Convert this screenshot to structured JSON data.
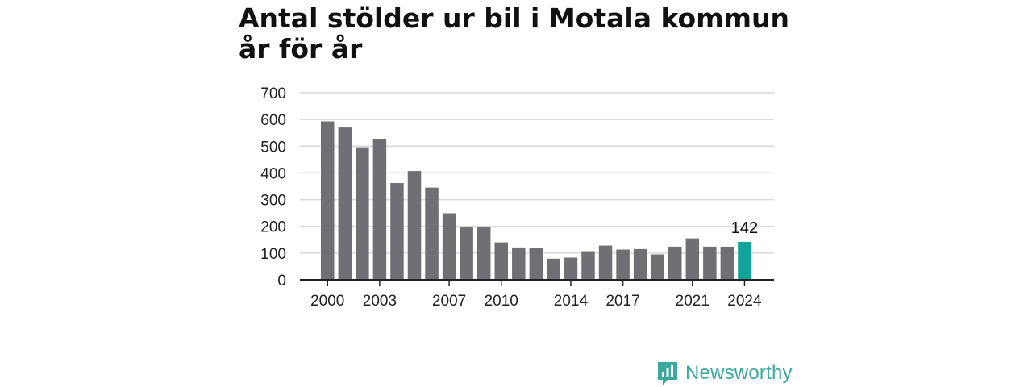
{
  "chart_data": {
    "type": "bar",
    "title": "Antal stölder ur bil i Motala kommun år för år",
    "x": [
      2000,
      2001,
      2002,
      2003,
      2004,
      2005,
      2006,
      2007,
      2008,
      2009,
      2010,
      2011,
      2012,
      2013,
      2014,
      2015,
      2016,
      2017,
      2018,
      2019,
      2020,
      2021,
      2022,
      2023,
      2024
    ],
    "values": [
      593,
      570,
      496,
      527,
      362,
      407,
      345,
      249,
      196,
      196,
      140,
      121,
      120,
      79,
      83,
      107,
      128,
      113,
      115,
      95,
      124,
      155,
      124,
      124,
      142
    ],
    "ylim": [
      0,
      700
    ],
    "yticks": [
      0,
      100,
      200,
      300,
      400,
      500,
      600,
      700
    ],
    "xtick_labels": [
      "2000",
      "2003",
      "2007",
      "2010",
      "2014",
      "2017",
      "2021",
      "2024"
    ],
    "highlight": {
      "index": 24,
      "label": "142"
    },
    "grid": true,
    "colors": {
      "bar": "#6f6f74",
      "highlight": "#0fa39a",
      "grid": "#d9d9d9",
      "axis": "#222222"
    }
  },
  "branding": {
    "logo_text": "Newsworthy",
    "logo_color": "#3fa89d"
  }
}
